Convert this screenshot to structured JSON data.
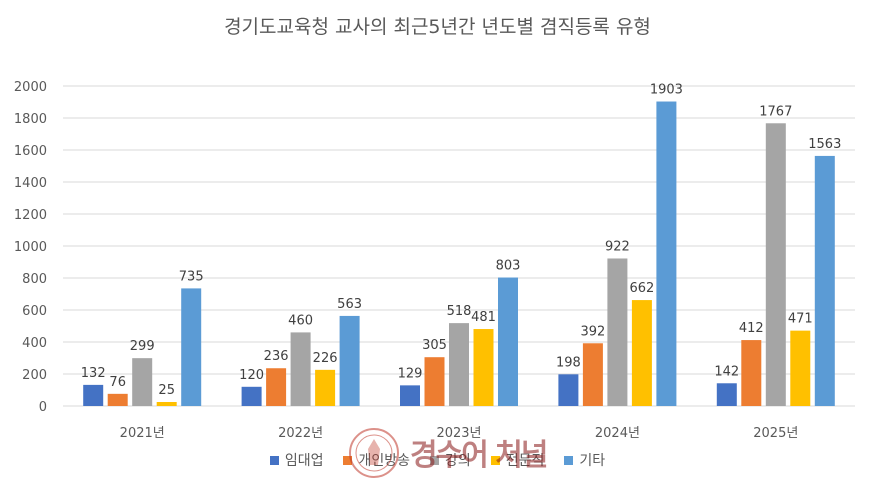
{
  "chart_data": {
    "type": "bar",
    "title": "경기도교육청 교사의 최근5년간 년도별 겸직등록 유형",
    "categories": [
      "2021년",
      "2022년",
      "2023년",
      "2024년",
      "2025년"
    ],
    "series": [
      {
        "name": "임대업",
        "color": "#4472C4",
        "values": [
          132,
          120,
          129,
          198,
          142
        ]
      },
      {
        "name": "개인방송",
        "color": "#ED7D31",
        "values": [
          76,
          236,
          305,
          392,
          412
        ]
      },
      {
        "name": "강의",
        "color": "#A5A5A5",
        "values": [
          299,
          460,
          518,
          922,
          1767
        ]
      },
      {
        "name": "전문직",
        "color": "#FFC000",
        "values": [
          25,
          226,
          481,
          662,
          471
        ]
      },
      {
        "name": "기타",
        "color": "#5B9BD5",
        "values": [
          735,
          563,
          803,
          1903,
          1563
        ]
      }
    ],
    "yticks": [
      0,
      200,
      400,
      600,
      800,
      1000,
      1200,
      1400,
      1600,
      1800,
      2000
    ],
    "ylim": [
      0,
      2000
    ],
    "grid": true,
    "legend_position": "bottom"
  },
  "watermark": {
    "signature_text": "경수어 처널"
  }
}
